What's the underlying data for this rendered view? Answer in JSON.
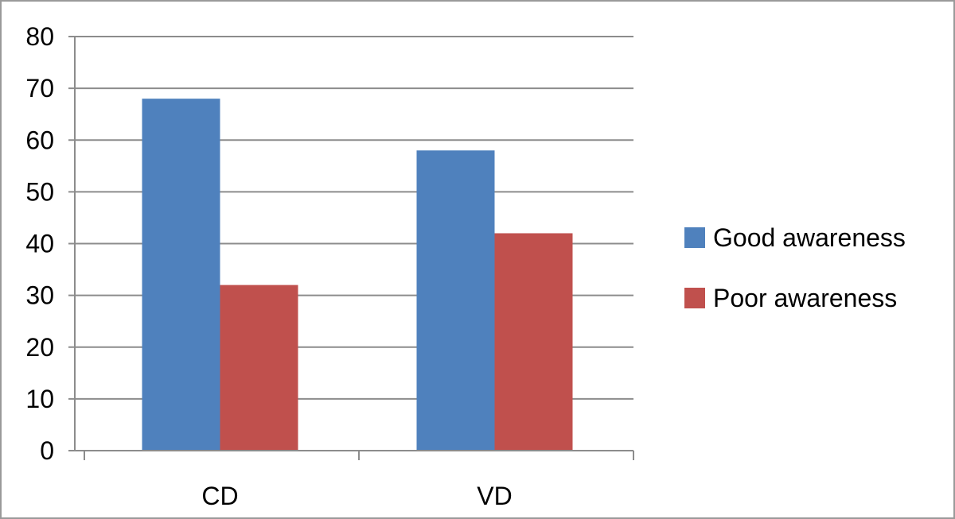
{
  "chart_data": {
    "type": "bar",
    "title": "",
    "xlabel": "",
    "ylabel": "",
    "categories": [
      "CD",
      "VD"
    ],
    "series": [
      {
        "name": "Good awareness",
        "values": [
          68,
          58
        ],
        "color": "#4f81bd"
      },
      {
        "name": "Poor awareness",
        "values": [
          32,
          42
        ],
        "color": "#c0504d"
      }
    ],
    "ylim": [
      0,
      80
    ],
    "yticks": [
      0,
      10,
      20,
      30,
      40,
      50,
      60,
      70,
      80
    ],
    "grid": true,
    "legend_position": "right"
  },
  "colors": {
    "grid": "#8c8c8c",
    "axis": "#8c8c8c",
    "frame": "#9a9a9a"
  }
}
